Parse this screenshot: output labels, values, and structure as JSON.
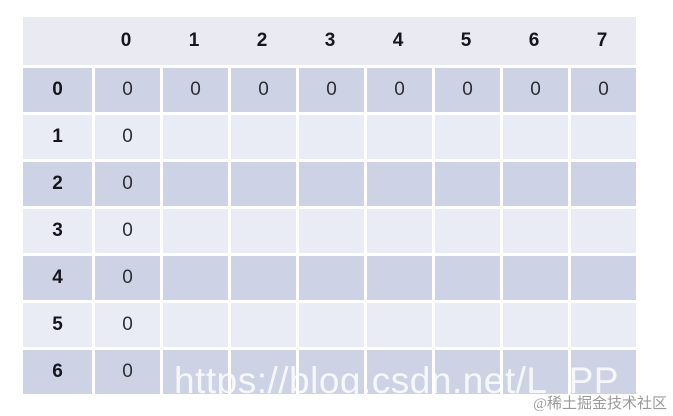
{
  "chart_data": {
    "type": "table",
    "corner_label": "",
    "column_headers": [
      "0",
      "1",
      "2",
      "3",
      "4",
      "5",
      "6",
      "7"
    ],
    "row_headers": [
      "0",
      "1",
      "2",
      "3",
      "4",
      "5",
      "6"
    ],
    "cells": [
      [
        "0",
        "0",
        "0",
        "0",
        "0",
        "0",
        "0",
        "0"
      ],
      [
        "0",
        "",
        "",
        "",
        "",
        "",
        "",
        ""
      ],
      [
        "0",
        "",
        "",
        "",
        "",
        "",
        "",
        ""
      ],
      [
        "0",
        "",
        "",
        "",
        "",
        "",
        "",
        ""
      ],
      [
        "0",
        "",
        "",
        "",
        "",
        "",
        "",
        ""
      ],
      [
        "0",
        "",
        "",
        "",
        "",
        "",
        "",
        ""
      ],
      [
        "0",
        "",
        "",
        "",
        "",
        "",
        "",
        ""
      ]
    ],
    "layout_hints": {
      "row_zero_filled": true,
      "first_column_filled": true,
      "striped_rows": true
    }
  },
  "watermark": {
    "text": "https://blog.csdn.net/L_PP"
  },
  "credit": {
    "text": "@稀土掘金技术社区"
  },
  "colors": {
    "header_bg": "#e9eaf2",
    "row_dark_bg": "#cdd3e4",
    "row_light_bg": "#eaecf5",
    "grid_line": "#ffffff",
    "header_text": "#16161e",
    "cell_text": "#2d2d35",
    "watermark_text": "rgba(255,255,255,0.82)",
    "credit_text": "#9a9a9a"
  }
}
